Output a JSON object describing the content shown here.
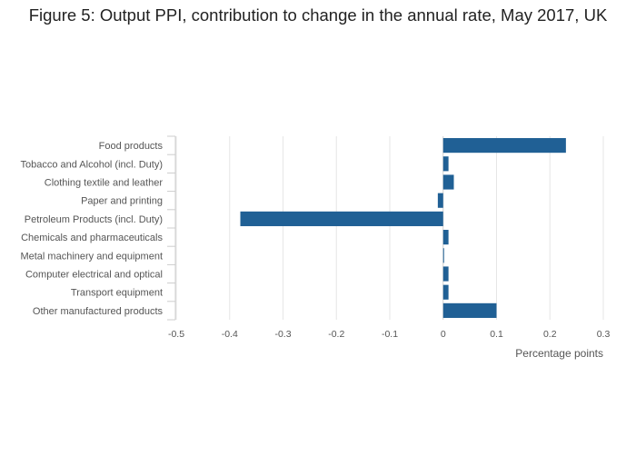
{
  "chart_data": {
    "type": "bar",
    "orientation": "horizontal",
    "title": "Figure 5: Output PPI, contribution to change in the annual rate, May 2017, UK",
    "xlabel": "Percentage points",
    "ylabel": "",
    "xlim": [
      -0.5,
      0.3
    ],
    "x_ticks": [
      "-0.5",
      "-0.4",
      "-0.3",
      "-0.2",
      "-0.1",
      "0",
      "0.1",
      "0.2",
      "0.3"
    ],
    "grid": true,
    "color": "#206095",
    "categories": [
      "Food products",
      "Tobacco and Alcohol (incl. Duty)",
      "Clothing textile and leather",
      "Paper and printing",
      "Petroleum Products (incl. Duty)",
      "Chemicals and pharmaceuticals",
      "Metal machinery and equipment",
      "Computer electrical and optical",
      "Transport equipment",
      "Other manufactured products"
    ],
    "values": [
      0.23,
      0.01,
      0.02,
      -0.01,
      -0.38,
      0.01,
      0.0,
      0.01,
      0.01,
      0.1
    ]
  }
}
